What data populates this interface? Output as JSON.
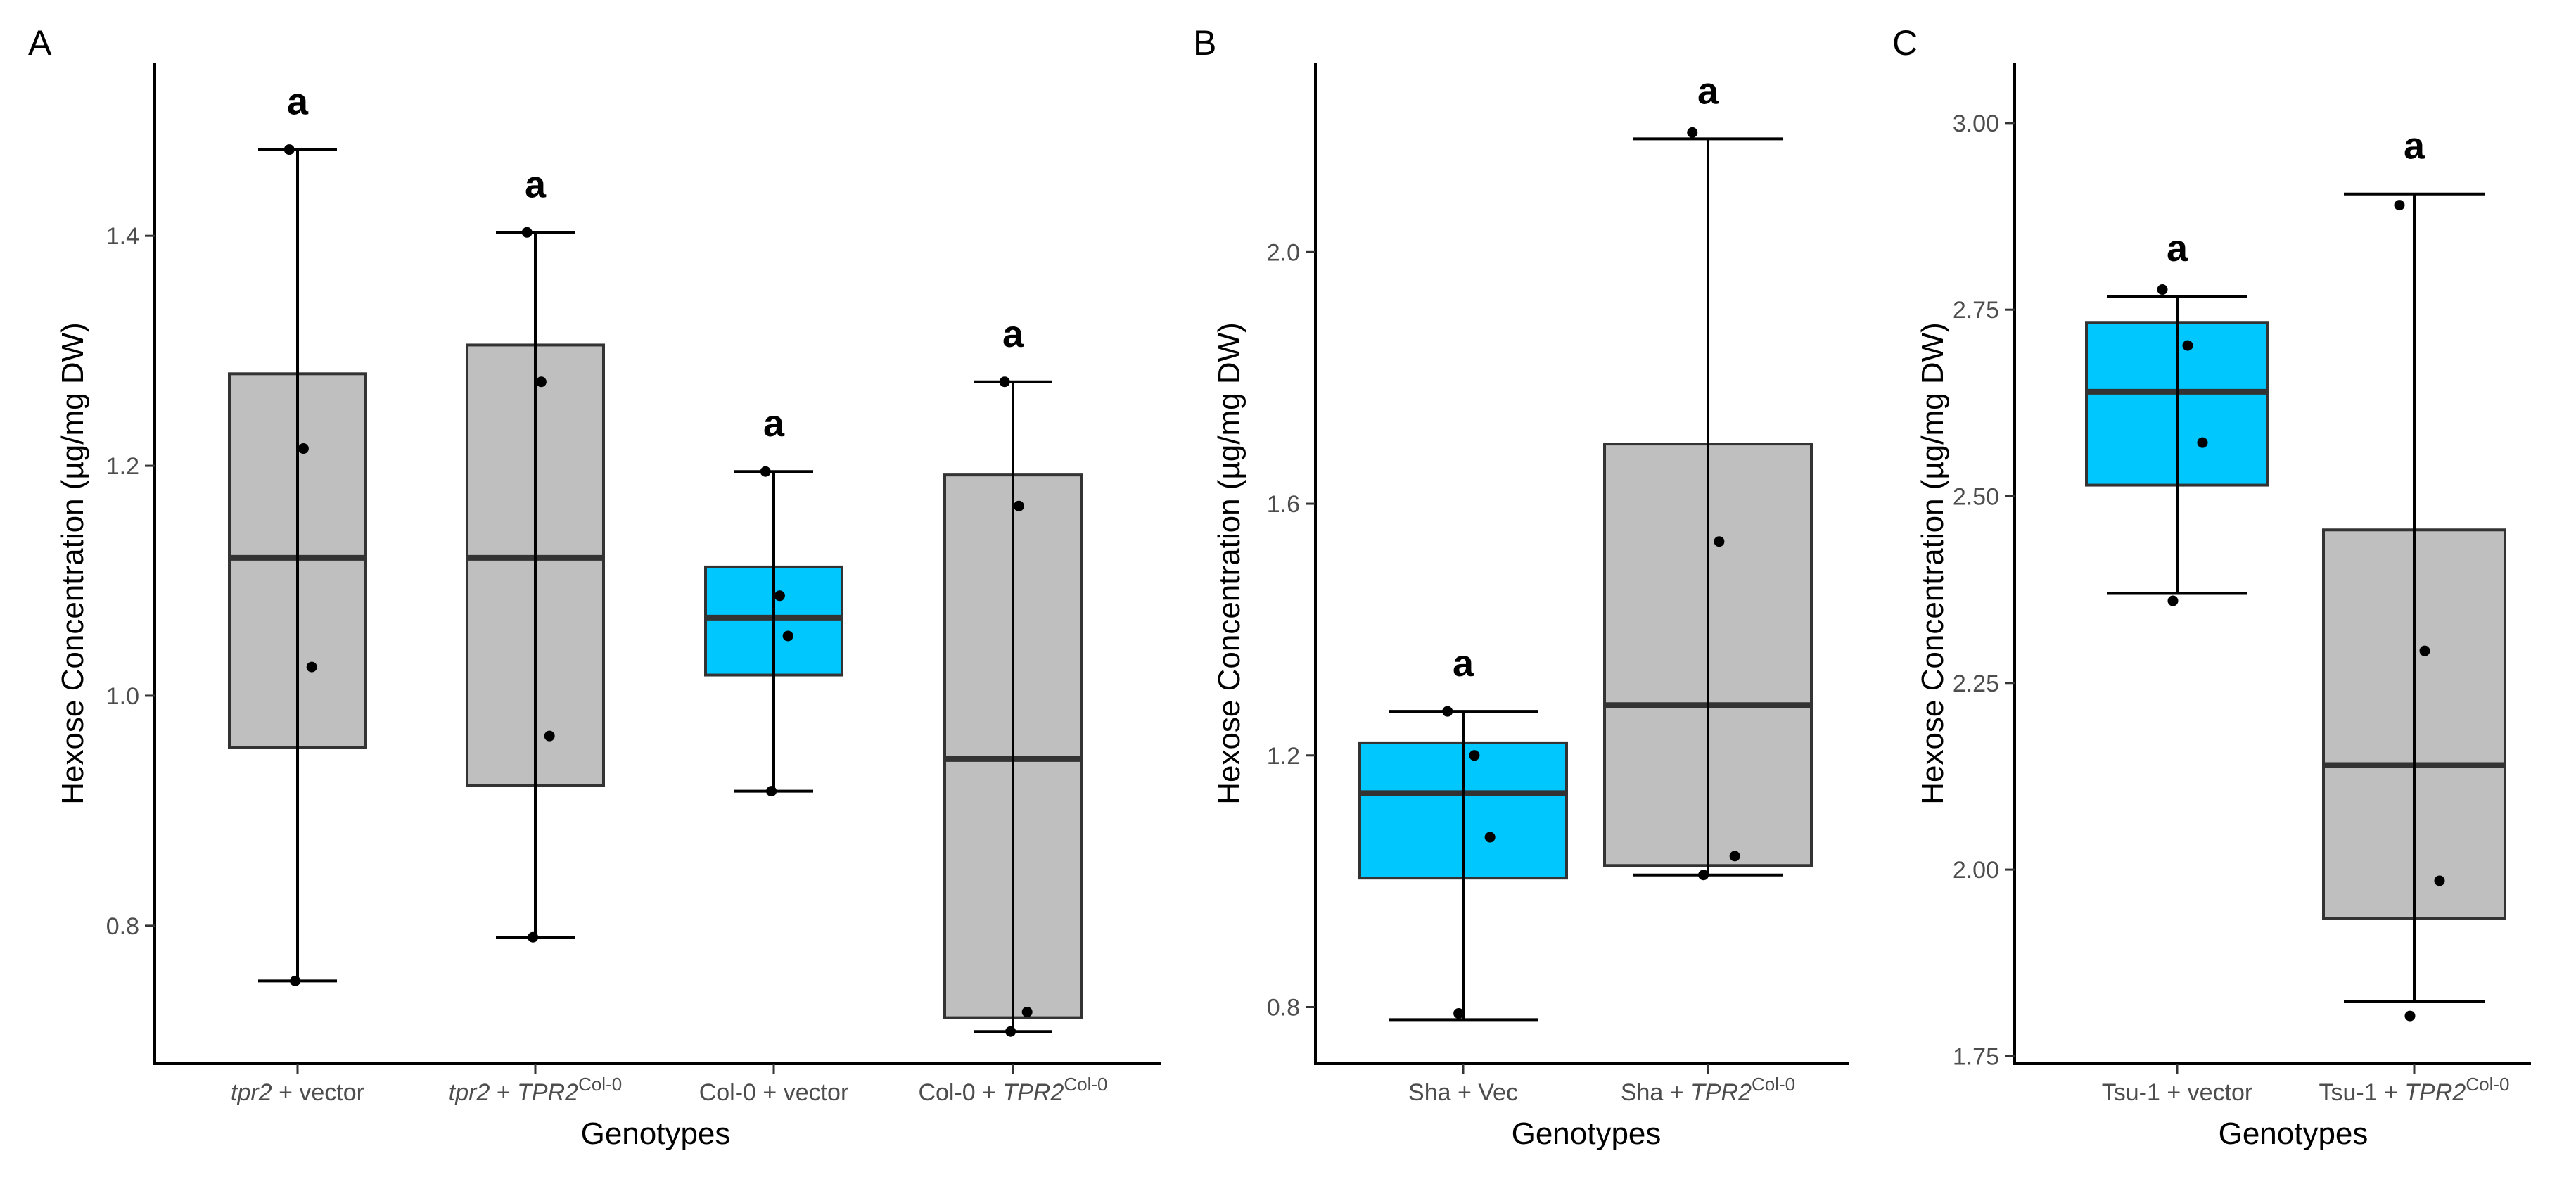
{
  "chart_data": [
    {
      "type": "box",
      "panel": "A",
      "xlabel": "Genotypes",
      "ylabel": "Hexose Concentration (µg/mg DW)",
      "ylim": [
        0.68,
        1.55
      ],
      "yticks": [
        0.8,
        1.0,
        1.2,
        1.4
      ],
      "ytick_labels": [
        "0.8",
        "1.0",
        "1.2",
        "1.4"
      ],
      "colors": {
        "gray": "#bfbfbf",
        "blue": "#00c8ff"
      },
      "groups": [
        {
          "label_parts": [
            {
              "text": "tpr2",
              "italic": true
            },
            {
              "text": " + vector"
            }
          ],
          "color": "gray",
          "q1": 0.955,
          "median": 1.12,
          "q3": 1.28,
          "whisker_low": 0.752,
          "whisker_high": 1.475,
          "points": [
            1.475,
            1.215,
            1.025,
            0.752
          ],
          "letter": "a"
        },
        {
          "label_parts": [
            {
              "text": "tpr2",
              "italic": true
            },
            {
              "text": " + "
            },
            {
              "text": "TPR2",
              "italic": true
            },
            {
              "text": "Col-0",
              "sup": true
            }
          ],
          "color": "gray",
          "q1": 0.922,
          "median": 1.12,
          "q3": 1.305,
          "whisker_low": 0.79,
          "whisker_high": 1.403,
          "points": [
            1.403,
            1.273,
            0.965,
            0.79
          ],
          "letter": "a"
        },
        {
          "label_parts": [
            {
              "text": "Col-0 + vector"
            }
          ],
          "color": "blue",
          "q1": 1.018,
          "median": 1.068,
          "q3": 1.112,
          "whisker_low": 0.917,
          "whisker_high": 1.195,
          "points": [
            1.195,
            1.087,
            1.052,
            0.917
          ],
          "letter": "a"
        },
        {
          "label_parts": [
            {
              "text": "Col-0 + "
            },
            {
              "text": "TPR2",
              "italic": true
            },
            {
              "text": "Col-0",
              "sup": true
            }
          ],
          "color": "gray",
          "q1": 0.72,
          "median": 0.945,
          "q3": 1.192,
          "whisker_low": 0.708,
          "whisker_high": 1.273,
          "points": [
            1.273,
            1.165,
            0.725,
            0.708
          ],
          "letter": "a"
        }
      ]
    },
    {
      "type": "box",
      "panel": "B",
      "xlabel": "Genotypes",
      "ylabel": "Hexose Concentration (µg/mg DW)",
      "ylim": [
        0.71,
        2.3
      ],
      "yticks": [
        0.8,
        1.2,
        1.6,
        2.0
      ],
      "ytick_labels": [
        "0.8",
        "1.2",
        "1.6",
        "2.0"
      ],
      "colors": {
        "gray": "#bfbfbf",
        "blue": "#00c8ff"
      },
      "groups": [
        {
          "label_parts": [
            {
              "text": "Sha + Vec"
            }
          ],
          "color": "blue",
          "q1": 1.005,
          "median": 1.14,
          "q3": 1.22,
          "whisker_low": 0.78,
          "whisker_high": 1.27,
          "points": [
            1.27,
            1.2,
            1.07,
            0.79
          ],
          "letter": "a"
        },
        {
          "label_parts": [
            {
              "text": "Sha + "
            },
            {
              "text": "TPR2",
              "italic": true
            },
            {
              "text": "Col-0",
              "sup": true
            }
          ],
          "color": "gray",
          "q1": 1.025,
          "median": 1.28,
          "q3": 1.695,
          "whisker_low": 1.01,
          "whisker_high": 2.18,
          "points": [
            2.19,
            1.54,
            1.04,
            1.01
          ],
          "letter": "a"
        }
      ]
    },
    {
      "type": "box",
      "panel": "C",
      "xlabel": "Genotypes",
      "ylabel": "Hexose Concentration (µg/mg DW)",
      "ylim": [
        1.74,
        3.08
      ],
      "yticks": [
        1.75,
        2.0,
        2.25,
        2.5,
        2.75,
        3.0
      ],
      "ytick_labels": [
        "1.75",
        "2.00",
        "2.25",
        "2.50",
        "2.75",
        "3.00"
      ],
      "colors": {
        "gray": "#bfbfbf",
        "blue": "#00c8ff"
      },
      "groups": [
        {
          "label_parts": [
            {
              "text": "Tsu-1 + vector"
            }
          ],
          "color": "blue",
          "q1": 2.515,
          "median": 2.64,
          "q3": 2.733,
          "whisker_low": 2.37,
          "whisker_high": 2.768,
          "points": [
            2.777,
            2.702,
            2.572,
            2.36
          ],
          "letter": "a"
        },
        {
          "label_parts": [
            {
              "text": "Tsu-1 + "
            },
            {
              "text": "TPR2",
              "italic": true
            },
            {
              "text": "Col-0",
              "sup": true
            }
          ],
          "color": "gray",
          "q1": 1.935,
          "median": 2.14,
          "q3": 2.455,
          "whisker_low": 1.823,
          "whisker_high": 2.905,
          "points": [
            2.89,
            2.293,
            1.985,
            1.804
          ],
          "letter": "a"
        }
      ]
    }
  ]
}
